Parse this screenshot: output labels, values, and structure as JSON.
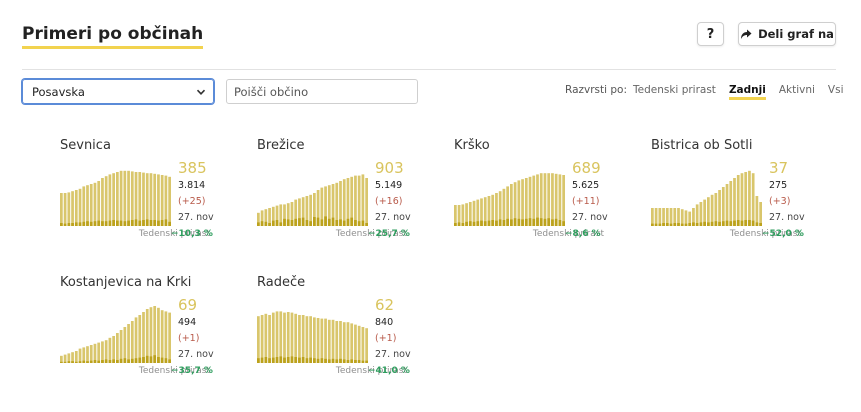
{
  "header": {
    "title": "Primeri po občinah",
    "help_label": "?",
    "share_label": "Deli graf na"
  },
  "filters": {
    "region_value": "Posavska",
    "search_placeholder": "Poišči občino"
  },
  "sort": {
    "label": "Razvrsti po:",
    "options": [
      "Tedenski prirast",
      "Zadnji",
      "Aktivni",
      "Vsi"
    ],
    "active": "Zadnji"
  },
  "colors": {
    "bar": "#d9c66c",
    "bar_dark": "#bca21c",
    "accent": "#f2d34f",
    "positive": "#2e9e5e",
    "delta": "#b85a4a"
  },
  "cards": [
    {
      "name": "Sevnica",
      "active": "385",
      "total": "3.814",
      "delta": "(+25)",
      "date": "27. nov",
      "weekly_label": "Tedenski prirast",
      "weekly_value": "−10,3 %",
      "bars": [
        55,
        55,
        56,
        58,
        60,
        62,
        66,
        68,
        70,
        72,
        75,
        80,
        83,
        86,
        88,
        90,
        92,
        92,
        92,
        91,
        90,
        90,
        89,
        88,
        88,
        87,
        86,
        85,
        84,
        82
      ],
      "daily": [
        5,
        4,
        5,
        5,
        6,
        6,
        7,
        8,
        7,
        8,
        9,
        8,
        8,
        9,
        10,
        9,
        9,
        8,
        9,
        10,
        11,
        9,
        10,
        11,
        10,
        10,
        9,
        10,
        11,
        7
      ]
    },
    {
      "name": "Brežice",
      "active": "903",
      "total": "5.149",
      "delta": "(+16)",
      "date": "27. nov",
      "weekly_label": "Tedenski prirast",
      "weekly_value": "−25,7 %",
      "bars": [
        22,
        26,
        28,
        30,
        32,
        34,
        36,
        36,
        38,
        40,
        44,
        46,
        48,
        50,
        52,
        55,
        60,
        64,
        66,
        68,
        70,
        72,
        75,
        78,
        80,
        82,
        84,
        84,
        86,
        80
      ],
      "daily": [
        6,
        8,
        7,
        5,
        9,
        10,
        6,
        12,
        11,
        10,
        12,
        13,
        14,
        10,
        8,
        15,
        14,
        11,
        16,
        12,
        14,
        10,
        11,
        9,
        12,
        14,
        10,
        8,
        9,
        5
      ]
    },
    {
      "name": "Krško",
      "active": "689",
      "total": "5.625",
      "delta": "(+11)",
      "date": "27. nov",
      "weekly_label": "Tedenski prirast",
      "weekly_value": "−8,6 %",
      "bars": [
        35,
        35,
        36,
        38,
        40,
        42,
        44,
        46,
        48,
        50,
        52,
        55,
        58,
        62,
        66,
        70,
        73,
        76,
        78,
        80,
        82,
        84,
        86,
        88,
        88,
        88,
        88,
        87,
        86,
        85
      ],
      "daily": [
        5,
        6,
        5,
        7,
        8,
        7,
        8,
        9,
        8,
        9,
        10,
        9,
        11,
        10,
        12,
        11,
        13,
        12,
        11,
        12,
        13,
        12,
        14,
        13,
        12,
        13,
        11,
        12,
        10,
        8
      ]
    },
    {
      "name": "Bistrica ob Sotli",
      "active": "37",
      "total": "275",
      "delta": "(+3)",
      "date": "27. nov",
      "weekly_label": "Tedenski prirast",
      "weekly_value": "−52,0 %",
      "bars": [
        30,
        30,
        30,
        30,
        30,
        30,
        30,
        30,
        28,
        26,
        24,
        30,
        36,
        40,
        44,
        48,
        52,
        55,
        60,
        65,
        70,
        75,
        80,
        85,
        88,
        90,
        92,
        88,
        50,
        40
      ],
      "daily": [
        4,
        4,
        4,
        5,
        5,
        4,
        5,
        5,
        4,
        4,
        5,
        6,
        5,
        6,
        7,
        6,
        7,
        8,
        7,
        8,
        9,
        8,
        9,
        10,
        9,
        10,
        10,
        9,
        6,
        5
      ]
    },
    {
      "name": "Kostanjevica na Krki",
      "active": "69",
      "total": "494",
      "delta": "(+1)",
      "date": "27. nov",
      "weekly_label": "Tedenski prirast",
      "weekly_value": "−35,7 %",
      "bars": [
        12,
        14,
        16,
        18,
        20,
        24,
        26,
        28,
        30,
        32,
        34,
        36,
        38,
        42,
        45,
        50,
        55,
        60,
        65,
        70,
        76,
        80,
        85,
        90,
        93,
        95,
        92,
        88,
        86,
        84
      ],
      "daily": [
        2,
        2,
        3,
        3,
        2,
        3,
        4,
        3,
        4,
        5,
        4,
        5,
        6,
        5,
        6,
        5,
        7,
        8,
        6,
        7,
        8,
        9,
        10,
        12,
        11,
        13,
        10,
        9,
        8,
        6
      ]
    },
    {
      "name": "Radeče",
      "active": "62",
      "total": "840",
      "delta": "(+1)",
      "date": "27. nov",
      "weekly_label": "Tedenski prirast",
      "weekly_value": "−41,0 %",
      "bars": [
        78,
        80,
        82,
        80,
        84,
        86,
        86,
        84,
        85,
        84,
        82,
        80,
        80,
        78,
        78,
        76,
        75,
        74,
        74,
        72,
        72,
        70,
        70,
        68,
        68,
        66,
        64,
        62,
        60,
        58
      ],
      "daily": [
        8,
        9,
        10,
        8,
        9,
        10,
        11,
        9,
        10,
        11,
        10,
        9,
        10,
        8,
        9,
        8,
        7,
        8,
        7,
        6,
        7,
        6,
        7,
        6,
        5,
        6,
        5,
        5,
        4,
        4
      ]
    }
  ]
}
